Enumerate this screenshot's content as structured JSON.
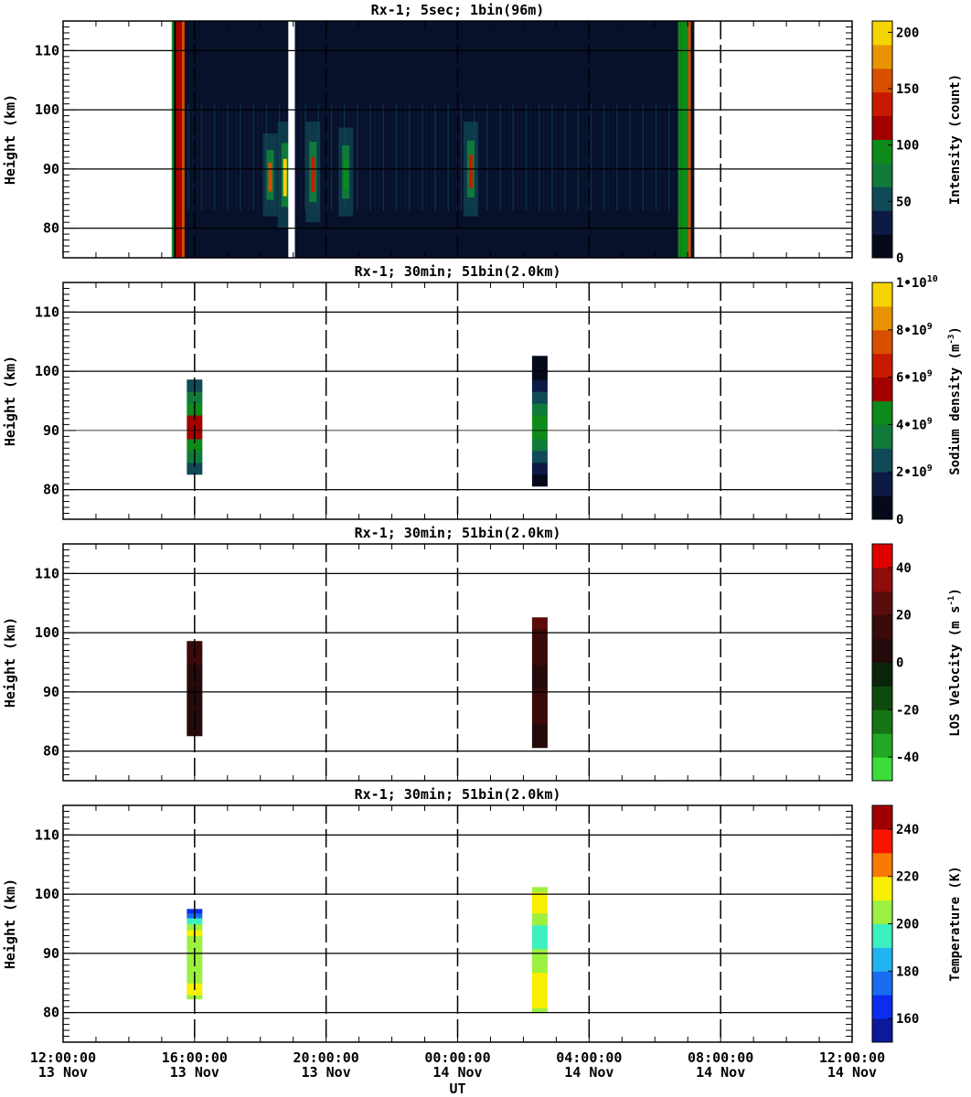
{
  "figure": {
    "xlabel": "UT",
    "x_ticks": [
      {
        "line1": "12:00:00",
        "line2": "13 Nov"
      },
      {
        "line1": "16:00:00",
        "line2": "13 Nov"
      },
      {
        "line1": "20:00:00",
        "line2": "13 Nov"
      },
      {
        "line1": "00:00:00",
        "line2": "14 Nov"
      },
      {
        "line1": "04:00:00",
        "line2": "14 Nov"
      },
      {
        "line1": "08:00:00",
        "line2": "14 Nov"
      },
      {
        "line1": "12:00:00",
        "line2": "14 Nov"
      }
    ]
  },
  "chart_data": [
    {
      "type": "heatmap",
      "title": "Rx-1;  5sec; 1bin(96m)",
      "xlabel": "UT",
      "ylabel": "Height (km)",
      "xlim_hours_from_13Nov_12UT": [
        0,
        24
      ],
      "ylim": [
        75,
        115
      ],
      "y_ticks": [
        80,
        90,
        100,
        110
      ],
      "data_extent_hours": [
        3.4,
        19.2
      ],
      "data_gap_hours": [
        6.85,
        7.05
      ],
      "colorbar": {
        "label": "Intensity (count)",
        "ticks": [
          "0",
          "50",
          "100",
          "150",
          "200"
        ],
        "range": [
          0,
          210
        ],
        "colors": [
          "#050a1a",
          "#0c1a44",
          "#0f4a56",
          "#107a3a",
          "#0e8a1a",
          "#a30000",
          "#c81a00",
          "#d84f00",
          "#e89400",
          "#f5d400"
        ]
      },
      "features": [
        {
          "x_hours": 3.5,
          "y_range": [
            75,
            115
          ],
          "value": 120
        },
        {
          "x_hours": 6.3,
          "y_range": [
            82,
            96
          ],
          "value": 150
        },
        {
          "x_hours": 6.75,
          "y_range": [
            80,
            98
          ],
          "value": 210
        },
        {
          "x_hours": 7.6,
          "y_range": [
            81,
            98
          ],
          "value": 140
        },
        {
          "x_hours": 8.6,
          "y_range": [
            82,
            97
          ],
          "value": 90
        },
        {
          "x_hours": 12.4,
          "y_range": [
            82,
            98
          ],
          "value": 130
        },
        {
          "x_hours": 18.9,
          "y_range": [
            75,
            115
          ],
          "value": 100
        }
      ]
    },
    {
      "type": "heatmap",
      "title": "Rx-1; 30min; 51bin(2.0km)",
      "xlabel": "UT",
      "ylabel": "Height (km)",
      "xlim_hours_from_13Nov_12UT": [
        0,
        24
      ],
      "ylim": [
        75,
        115
      ],
      "y_ticks": [
        80,
        90,
        100,
        110
      ],
      "colorbar": {
        "label": "Sodium density (m^-3)",
        "ticks": [
          "0",
          "2•10^9",
          "4•10^9",
          "6•10^9",
          "8•10^9",
          "1•10^10"
        ],
        "range": [
          0,
          10000000000
        ],
        "colors": [
          "#050a1a",
          "#0c1a44",
          "#0f4a56",
          "#107a3a",
          "#0e8a1a",
          "#a30000",
          "#c81a00",
          "#d84f00",
          "#e89400",
          "#f5d400"
        ]
      },
      "columns": [
        {
          "x_hours": 4.0,
          "cells": [
            {
              "y": 82.6,
              "value": 2500000000
            },
            {
              "y": 84.6,
              "value": 3500000000
            },
            {
              "y": 86.6,
              "value": 4500000000
            },
            {
              "y": 88.6,
              "value": 5500000000
            },
            {
              "y": 90.6,
              "value": 5500000000
            },
            {
              "y": 92.6,
              "value": 4500000000
            },
            {
              "y": 94.6,
              "value": 3500000000
            },
            {
              "y": 96.6,
              "value": 2500000000
            }
          ]
        },
        {
          "x_hours": 14.5,
          "cells": [
            {
              "y": 80.6,
              "value": 500000000
            },
            {
              "y": 82.6,
              "value": 1500000000
            },
            {
              "y": 84.6,
              "value": 2500000000
            },
            {
              "y": 86.6,
              "value": 3500000000
            },
            {
              "y": 88.6,
              "value": 4500000000
            },
            {
              "y": 90.6,
              "value": 4500000000
            },
            {
              "y": 92.6,
              "value": 3500000000
            },
            {
              "y": 94.6,
              "value": 2500000000
            },
            {
              "y": 96.6,
              "value": 1500000000
            },
            {
              "y": 98.6,
              "value": 500000000
            },
            {
              "y": 100.6,
              "value": 500000000
            }
          ]
        }
      ]
    },
    {
      "type": "heatmap",
      "title": "Rx-1; 30min; 51bin(2.0km)",
      "xlabel": "UT",
      "ylabel": "Height (km)",
      "xlim_hours_from_13Nov_12UT": [
        0,
        24
      ],
      "ylim": [
        75,
        115
      ],
      "y_ticks": [
        80,
        90,
        100,
        110
      ],
      "colorbar": {
        "label": "LOS Velocity (m s^-1)",
        "ticks": [
          "-40",
          "-20",
          "0",
          "20",
          "40"
        ],
        "range": [
          -50,
          50
        ],
        "colors": [
          "#3ddc3d",
          "#22a822",
          "#157515",
          "#0e4a0e",
          "#0a240a",
          "#240a0a",
          "#3a0a0a",
          "#5a0c0c",
          "#8e0c0c",
          "#e00000"
        ]
      },
      "columns": [
        {
          "x_hours": 4.0,
          "cells": [
            {
              "y": 82.6,
              "value": 5
            },
            {
              "y": 84.6,
              "value": 5
            },
            {
              "y": 86.6,
              "value": 5
            },
            {
              "y": 88.6,
              "value": 5
            },
            {
              "y": 90.6,
              "value": 5
            },
            {
              "y": 92.6,
              "value": 5
            },
            {
              "y": 94.6,
              "value": 15
            },
            {
              "y": 96.6,
              "value": 15
            }
          ]
        },
        {
          "x_hours": 14.5,
          "cells": [
            {
              "y": 80.6,
              "value": 5
            },
            {
              "y": 82.6,
              "value": 5
            },
            {
              "y": 84.6,
              "value": 15
            },
            {
              "y": 86.6,
              "value": 15
            },
            {
              "y": 88.6,
              "value": 15
            },
            {
              "y": 90.6,
              "value": 5
            },
            {
              "y": 92.6,
              "value": 5
            },
            {
              "y": 94.6,
              "value": 15
            },
            {
              "y": 96.6,
              "value": 15
            },
            {
              "y": 98.6,
              "value": 15
            },
            {
              "y": 100.6,
              "value": 25
            }
          ]
        }
      ]
    },
    {
      "type": "heatmap",
      "title": "Rx-1; 30min; 51bin(2.0km)",
      "xlabel": "UT",
      "ylabel": "Height (km)",
      "xlim_hours_from_13Nov_12UT": [
        0,
        24
      ],
      "ylim": [
        75,
        115
      ],
      "y_ticks": [
        80,
        90,
        100,
        110
      ],
      "colorbar": {
        "label": "Temperature (K)",
        "ticks": [
          "160",
          "180",
          "200",
          "220",
          "240"
        ],
        "range": [
          150,
          250
        ],
        "colors": [
          "#0a1a9a",
          "#0c2cf0",
          "#1a6cf0",
          "#22b4f0",
          "#3cf0c0",
          "#9cf040",
          "#f8f000",
          "#f87a00",
          "#f81400",
          "#a00000"
        ]
      },
      "columns": [
        {
          "x_hours": 4.0,
          "cells": [
            {
              "y": 82.3,
              "h": 0.7,
              "value": 205
            },
            {
              "y": 83.0,
              "h": 2.0,
              "value": 215
            },
            {
              "y": 85.0,
              "h": 2.0,
              "value": 205
            },
            {
              "y": 87.0,
              "h": 2.0,
              "value": 205
            },
            {
              "y": 89.0,
              "h": 2.0,
              "value": 205
            },
            {
              "y": 91.0,
              "h": 2.0,
              "value": 205
            },
            {
              "y": 93.0,
              "h": 1.0,
              "value": 215
            },
            {
              "y": 94.0,
              "h": 1.0,
              "value": 205
            },
            {
              "y": 95.0,
              "h": 1.0,
              "value": 195
            },
            {
              "y": 96.0,
              "h": 0.8,
              "value": 175
            },
            {
              "y": 96.8,
              "h": 0.7,
              "value": 165
            }
          ]
        },
        {
          "x_hours": 14.5,
          "cells": [
            {
              "y": 80.0,
              "h": 0.8,
              "value": 205
            },
            {
              "y": 80.8,
              "h": 2.0,
              "value": 215
            },
            {
              "y": 82.8,
              "h": 2.0,
              "value": 215
            },
            {
              "y": 84.8,
              "h": 2.0,
              "value": 215
            },
            {
              "y": 86.8,
              "h": 2.0,
              "value": 205
            },
            {
              "y": 88.8,
              "h": 2.0,
              "value": 205
            },
            {
              "y": 90.8,
              "h": 2.0,
              "value": 195
            },
            {
              "y": 92.8,
              "h": 2.0,
              "value": 195
            },
            {
              "y": 94.8,
              "h": 2.0,
              "value": 205
            },
            {
              "y": 96.8,
              "h": 2.0,
              "value": 215
            },
            {
              "y": 98.8,
              "h": 1.6,
              "value": 215
            },
            {
              "y": 100.4,
              "h": 0.8,
              "value": 205
            }
          ]
        }
      ]
    }
  ]
}
